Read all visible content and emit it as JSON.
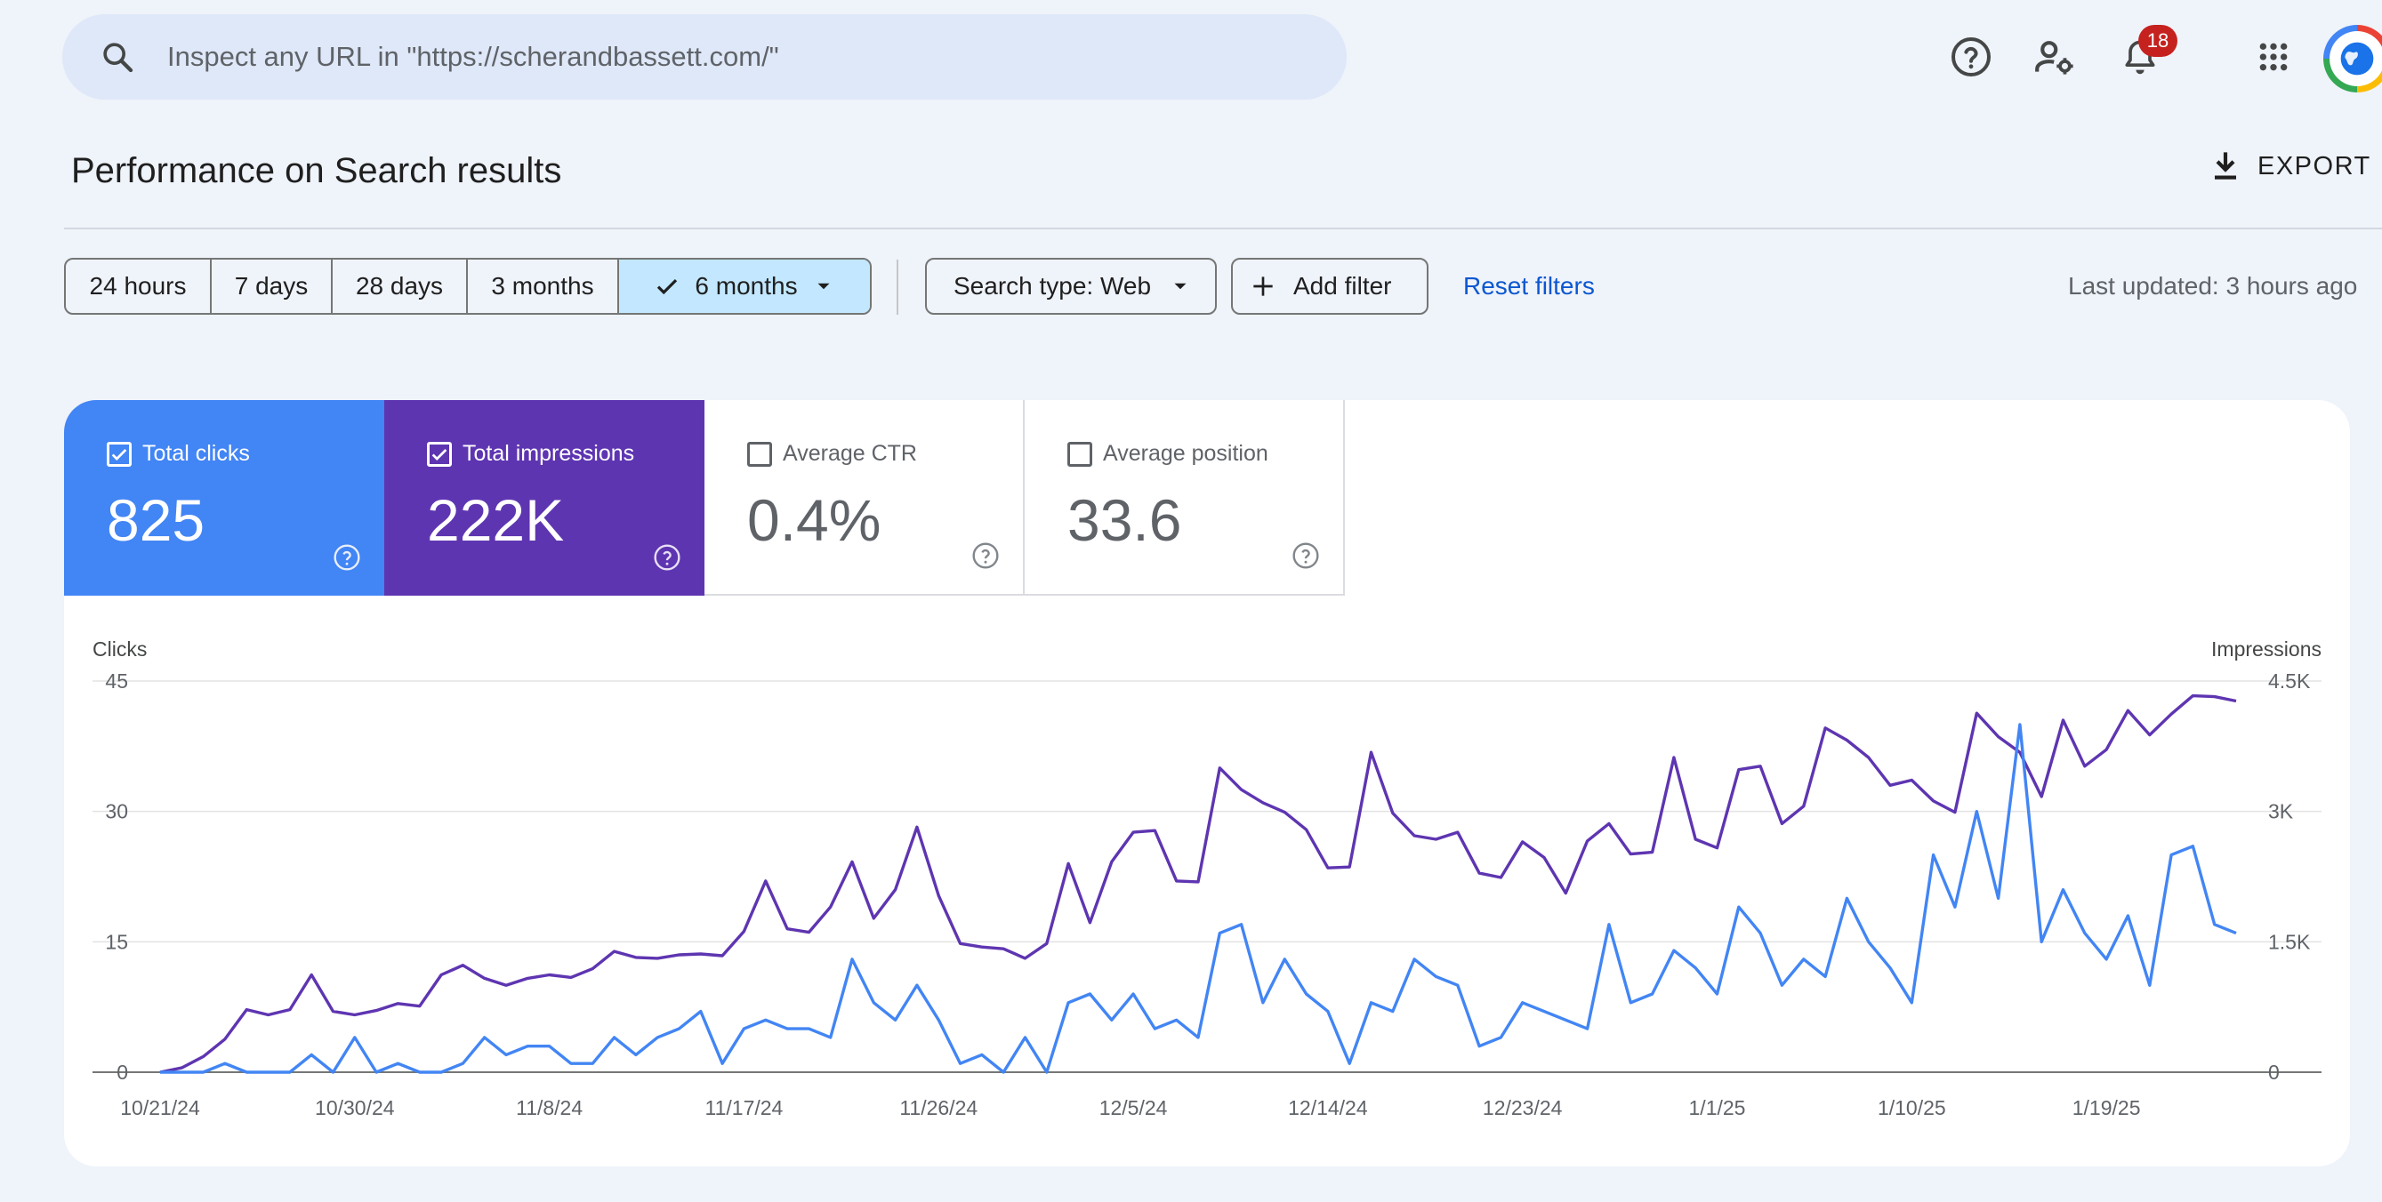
{
  "search": {
    "placeholder": "Inspect any URL in \"https://scherandbassett.com/\"",
    "icon": "search-icon"
  },
  "topbar": {
    "icons": [
      "help-icon",
      "manage-users-icon",
      "notifications-icon",
      "apps-grid-icon"
    ],
    "notification_count": "18"
  },
  "header": {
    "title": "Performance on Search results",
    "export_label": "EXPORT"
  },
  "filters": {
    "ranges": [
      "24 hours",
      "7 days",
      "28 days",
      "3 months",
      "6 months"
    ],
    "selected_range": "6 months",
    "search_type": "Search type: Web",
    "add_filter": "Add filter",
    "reset": "Reset filters",
    "last_updated": "Last updated: 3 hours ago"
  },
  "metrics": {
    "clicks": {
      "label": "Total clicks",
      "value": "825",
      "checked": true,
      "color": "#4285f4"
    },
    "impressions": {
      "label": "Total impressions",
      "value": "222K",
      "checked": true,
      "color": "#5e35b1"
    },
    "ctr": {
      "label": "Average CTR",
      "value": "0.4%",
      "checked": false
    },
    "position": {
      "label": "Average position",
      "value": "33.6",
      "checked": false
    }
  },
  "chart_data": {
    "type": "line",
    "title": "",
    "xlabel": "",
    "ylabel_left": "Clicks",
    "ylabel_right": "Impressions",
    "ylim_left": [
      0,
      45
    ],
    "ylim_right": [
      0,
      4500
    ],
    "yticks_left": [
      "0",
      "15",
      "30",
      "45"
    ],
    "yticks_right": [
      "0",
      "1.5K",
      "3K",
      "4.5K"
    ],
    "x_tick_labels": [
      "10/21/24",
      "10/30/24",
      "11/8/24",
      "11/17/24",
      "11/26/24",
      "12/5/24",
      "12/14/24",
      "12/23/24",
      "1/1/25",
      "1/10/25",
      "1/19/25"
    ],
    "x_start": "10/21/24",
    "x_end": "1/28/25",
    "grid": true,
    "series": [
      {
        "name": "Clicks",
        "axis": "left",
        "color": "#4285f4",
        "values": [
          0,
          0,
          0,
          1,
          0,
          0,
          0,
          2,
          0,
          4,
          0,
          1,
          0,
          0,
          1,
          4,
          2,
          3,
          3,
          1,
          1,
          4,
          2,
          4,
          5,
          7,
          1,
          5,
          6,
          5,
          5,
          4,
          13,
          8,
          6,
          10,
          6,
          1,
          2,
          0,
          4,
          0,
          8,
          9,
          6,
          9,
          5,
          6,
          4,
          16,
          17,
          8,
          13,
          9,
          7,
          1,
          8,
          7,
          13,
          11,
          10,
          3,
          4,
          8,
          7,
          6,
          5,
          17,
          8,
          9,
          14,
          12,
          9,
          19,
          16,
          10,
          13,
          11,
          20,
          15,
          12,
          8,
          25,
          19,
          30,
          20,
          40,
          15,
          21,
          16,
          13,
          18,
          10,
          25,
          26,
          17,
          16
        ]
      },
      {
        "name": "Impressions",
        "axis": "right",
        "color": "#5e35b1",
        "values": [
          0,
          50,
          180,
          380,
          720,
          660,
          720,
          1120,
          700,
          660,
          710,
          790,
          760,
          1120,
          1230,
          1080,
          1000,
          1080,
          1120,
          1090,
          1190,
          1390,
          1320,
          1310,
          1350,
          1360,
          1340,
          1620,
          2200,
          1650,
          1610,
          1900,
          2420,
          1770,
          2100,
          2820,
          2030,
          1480,
          1440,
          1420,
          1310,
          1480,
          2400,
          1720,
          2420,
          2760,
          2780,
          2200,
          2190,
          3500,
          3250,
          3100,
          2990,
          2790,
          2350,
          2360,
          3680,
          2980,
          2720,
          2680,
          2760,
          2290,
          2240,
          2650,
          2470,
          2060,
          2660,
          2860,
          2510,
          2530,
          3620,
          2680,
          2580,
          3480,
          3520,
          2860,
          3060,
          3960,
          3820,
          3620,
          3300,
          3360,
          3120,
          2990,
          4130,
          3860,
          3680,
          3170,
          4050,
          3520,
          3710,
          4160,
          3880,
          4120,
          4330,
          4320,
          4270
        ]
      }
    ]
  }
}
